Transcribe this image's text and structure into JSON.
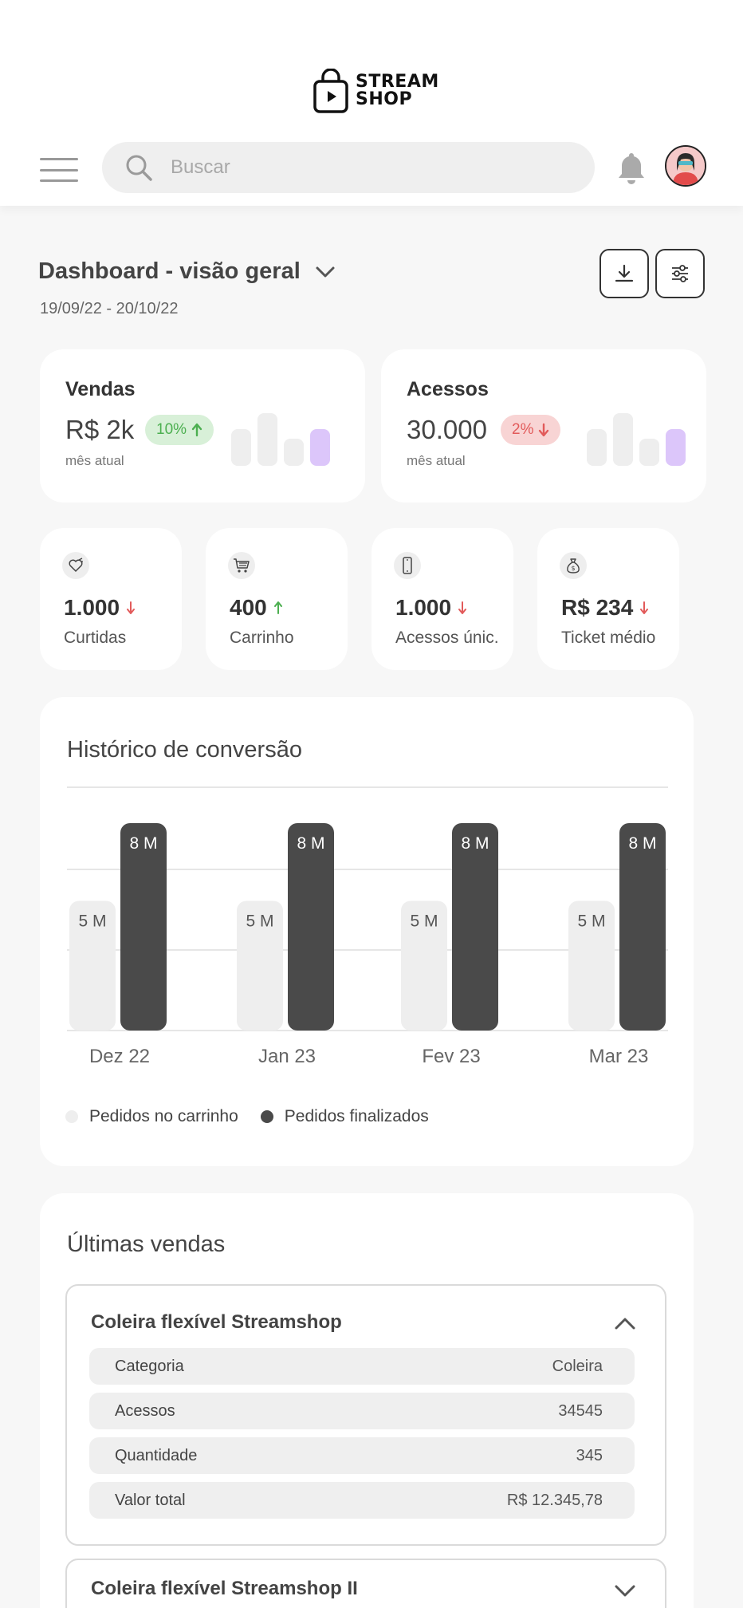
{
  "header": {
    "logo_line1": "STREAM",
    "logo_line2": "SHOP",
    "search_placeholder": "Buscar"
  },
  "dashboard": {
    "title": "Dashboard - visão geral",
    "date_range": "19/09/22 - 20/10/22"
  },
  "stats": [
    {
      "label": "Vendas",
      "value": "R$ 2k",
      "change": "10%",
      "trend": "up",
      "sub": "mês atual",
      "bars": [
        0.55,
        0.78,
        0.4,
        0.55
      ]
    },
    {
      "label": "Acessos",
      "value": "30.000",
      "change": "2%",
      "trend": "down",
      "sub": "mês atual",
      "bars": [
        0.55,
        0.78,
        0.4,
        0.55
      ]
    }
  ],
  "metrics": [
    {
      "icon": "heart-icon",
      "value": "1.000",
      "trend": "down",
      "label": "Curtidas"
    },
    {
      "icon": "cart-icon",
      "value": "400",
      "trend": "up",
      "label": "Carrinho"
    },
    {
      "icon": "phone-icon",
      "value": "1.000",
      "trend": "down",
      "label": "Acessos únic."
    },
    {
      "icon": "money-bag-icon",
      "value": "R$ 234",
      "trend": "down",
      "label": "Ticket médio"
    }
  ],
  "colors": {
    "up": "#4caf50",
    "down": "#e25a5a",
    "highlight": "#dcc6fa",
    "bar_light": "#eeeeee",
    "bar_dark": "#4a4a4a"
  },
  "chart_data": {
    "type": "bar",
    "title": "Histórico de conversão",
    "categories": [
      "Dez 22",
      "Jan 23",
      "Fev 23",
      "Mar 23"
    ],
    "series": [
      {
        "name": "Pedidos no carrinho",
        "values": [
          5,
          5,
          5,
          5
        ],
        "labels": [
          "5 M",
          "5 M",
          "5 M",
          "5 M"
        ],
        "color": "#eeeeee"
      },
      {
        "name": "Pedidos finalizados",
        "values": [
          8,
          8,
          8,
          8
        ],
        "labels": [
          "8 M",
          "8 M",
          "8 M",
          "8 M"
        ],
        "color": "#4a4a4a"
      }
    ],
    "ylim": [
      0,
      8
    ],
    "grid": true,
    "legend": "bottom-left"
  },
  "sales": {
    "title": "Últimas vendas",
    "items": [
      {
        "name": "Coleira flexível Streamshop",
        "expanded": true,
        "rows": [
          {
            "k": "Categoria",
            "v": "Coleira"
          },
          {
            "k": "Acessos",
            "v": "34545"
          },
          {
            "k": "Quantidade",
            "v": "345"
          },
          {
            "k": "Valor total",
            "v": "R$ 12.345,78"
          }
        ]
      },
      {
        "name": "Coleira flexível Streamshop II",
        "expanded": false
      }
    ]
  }
}
